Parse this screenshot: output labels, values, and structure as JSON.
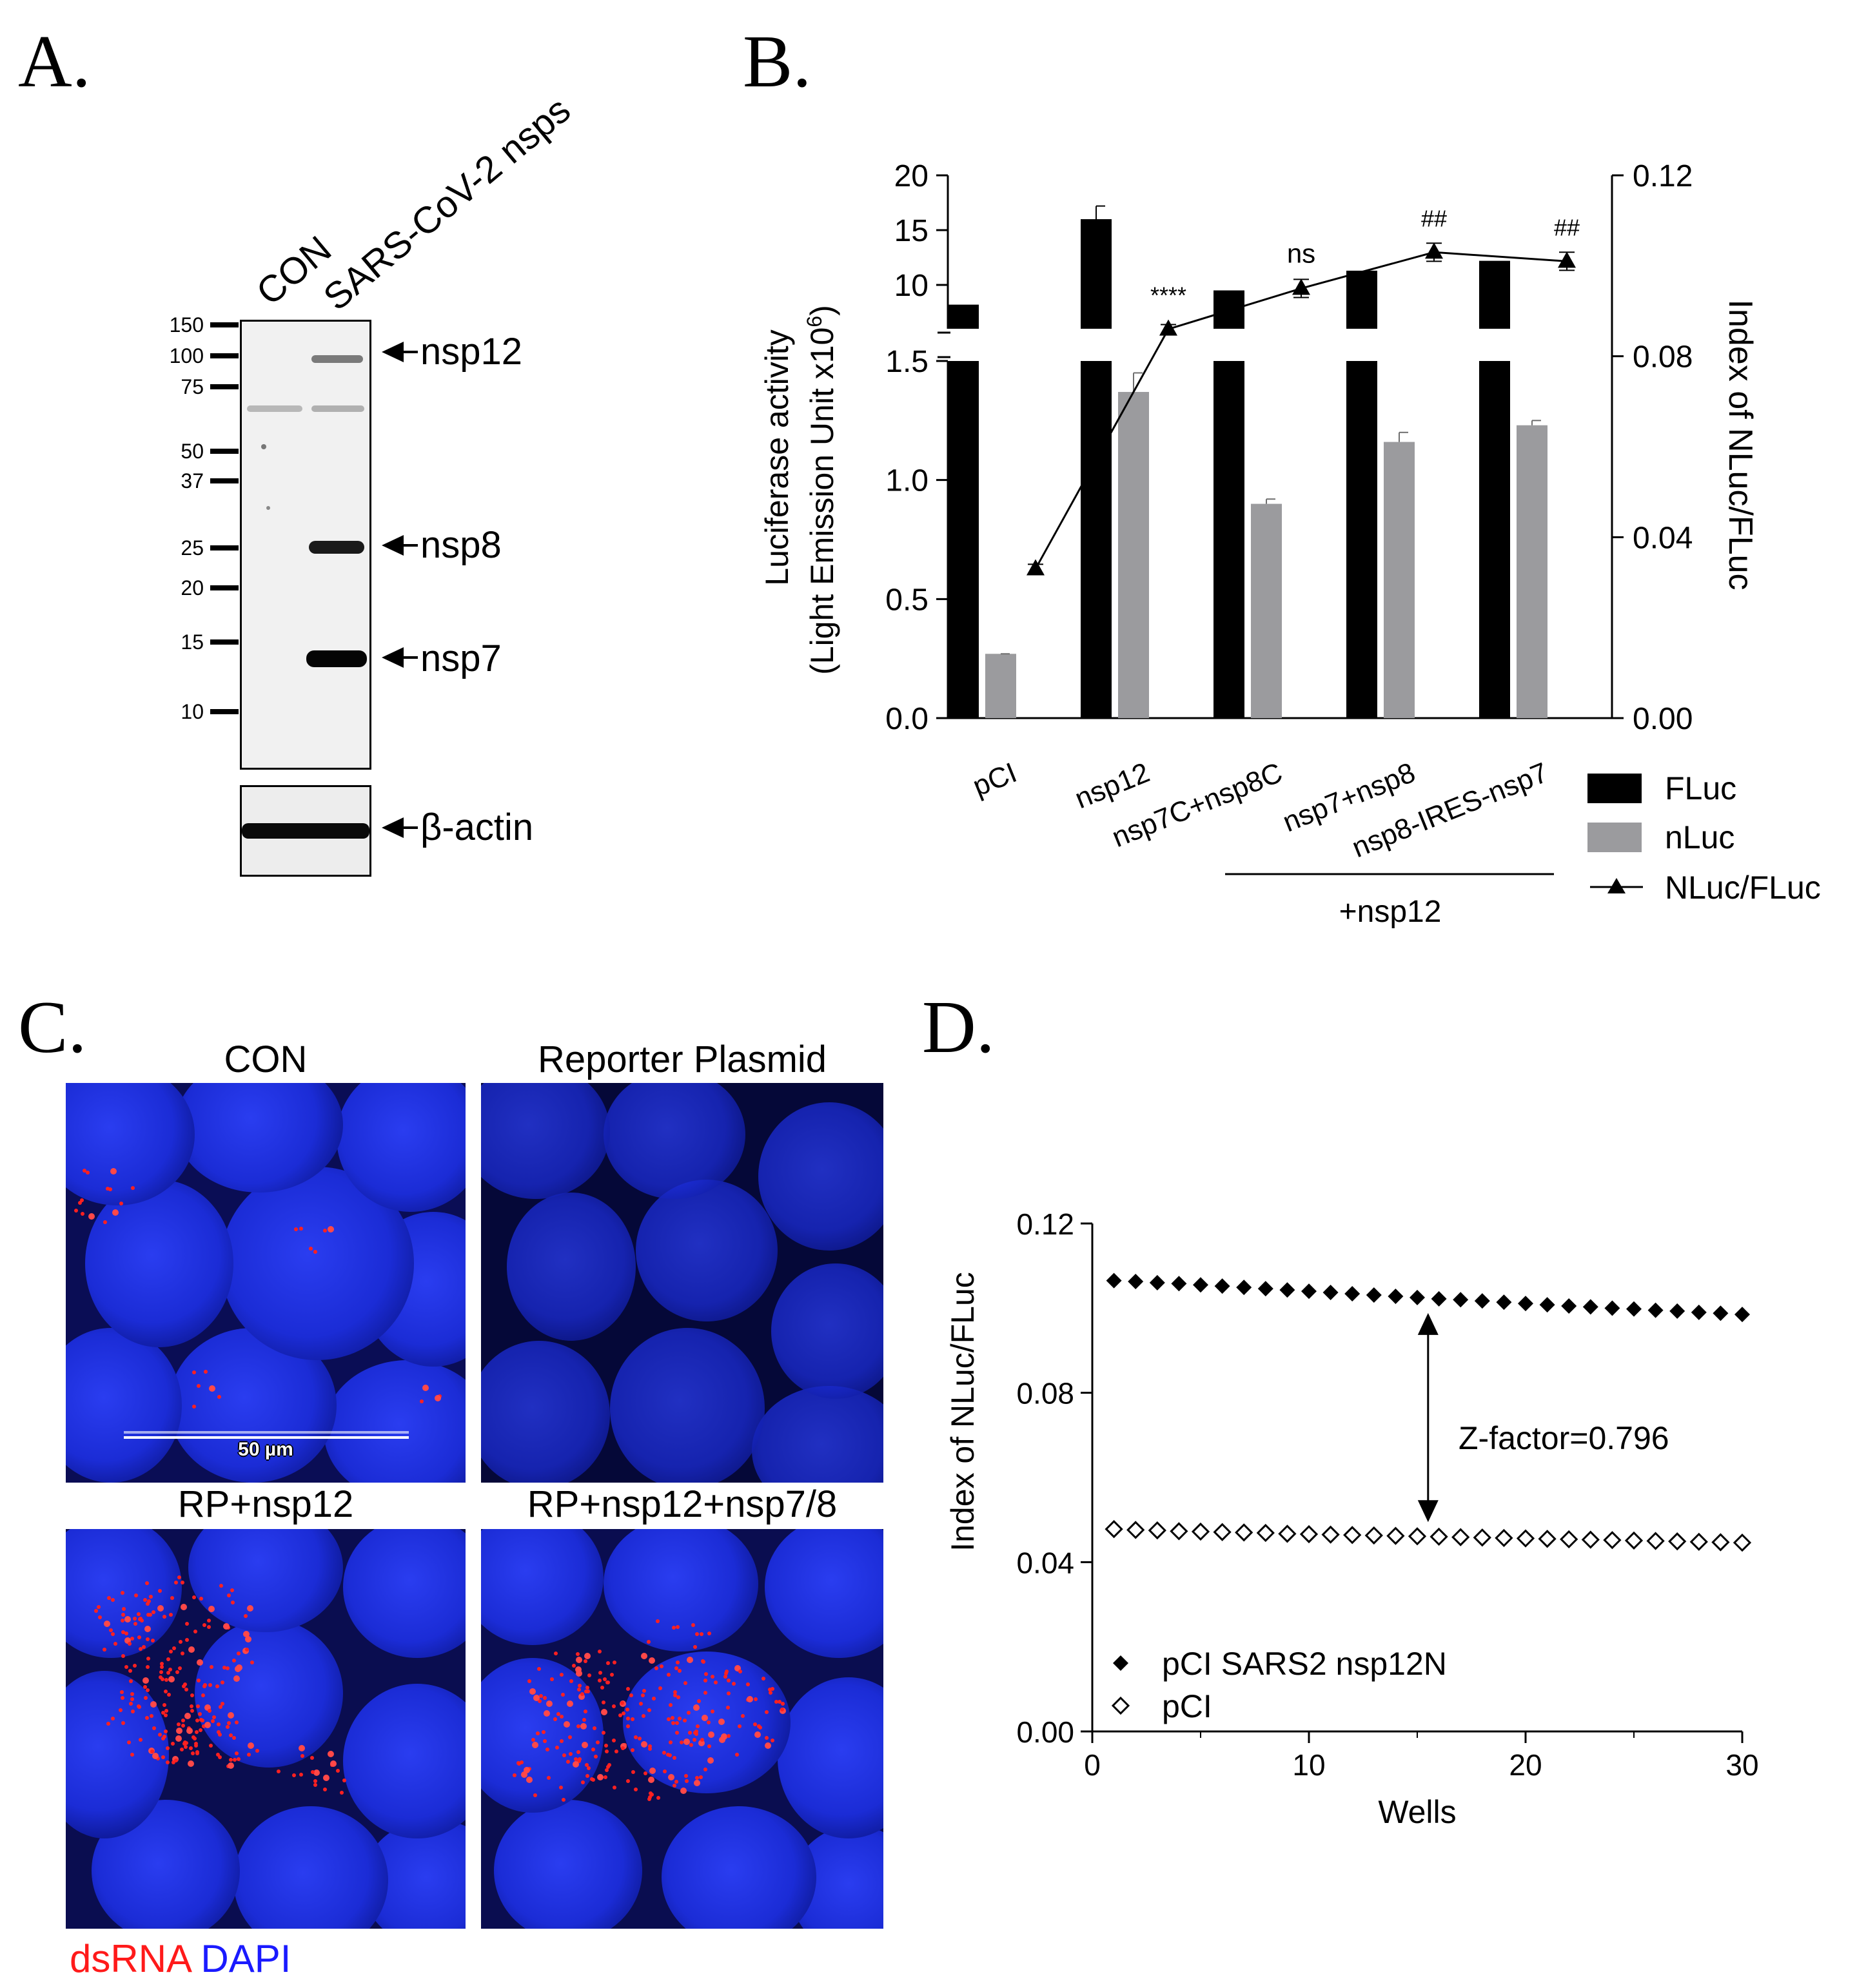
{
  "panels": {
    "a": {
      "letter": "A.",
      "lanes": [
        "CON",
        "SARS-CoV-2 nsps"
      ],
      "markers": [
        "150",
        "100",
        "75",
        "50",
        "37",
        "25",
        "20",
        "15",
        "10"
      ],
      "bands": [
        "nsp12",
        "nsp8",
        "nsp7"
      ],
      "loading_control": "β-actin"
    },
    "b": {
      "letter": "B."
    },
    "c": {
      "letter": "C.",
      "titles": [
        "CON",
        "Reporter Plasmid",
        "RP+nsp12",
        "RP+nsp12+nsp7/8"
      ],
      "scale_bar": "50 µm",
      "stain_red": "dsRNA",
      "stain_blue": "DAPI"
    },
    "d": {
      "letter": "D."
    }
  },
  "chart_data": [
    {
      "panel": "B",
      "type": "bar",
      "categories": [
        "pCI",
        "nsp12",
        "nsp7C+nsp8C",
        "nsp7+nsp8",
        "nsp8-IRES-nsp7"
      ],
      "group_label": "+nsp12",
      "ylabel_line1": "Luciferase activity",
      "ylabel_line2": "(Light Emission Unit x10",
      "ylabel_sup": "6",
      "ylabel_close": ")",
      "y2label": "Index of NLuc/FLuc",
      "yticks_lower": [
        "0.0",
        "0.5",
        "1.0",
        "1.5"
      ],
      "yticks_upper": [
        "10",
        "15",
        "20"
      ],
      "y2ticks": [
        "0.00",
        "0.04",
        "0.08",
        "0.12"
      ],
      "ylim_lower": [
        0,
        1.5
      ],
      "ylim_upper": [
        6,
        20
      ],
      "y2lim": [
        0,
        0.12
      ],
      "series": [
        {
          "name": "FLuc",
          "color": "#000000",
          "values": [
            8.2,
            16.0,
            9.5,
            11.3,
            12.2
          ]
        },
        {
          "name": "nLuc",
          "color": "#9b9b9e",
          "values": [
            0.27,
            1.37,
            0.9,
            1.16,
            1.23
          ],
          "errors": [
            0.0,
            0.08,
            0.02,
            0.04,
            0.02
          ]
        },
        {
          "name": "NLuc/FLuc",
          "color": "#000000",
          "values": [
            0.033,
            0.086,
            0.095,
            0.103,
            0.101
          ],
          "errors": [
            0.001,
            0.001,
            0.002,
            0.002,
            0.002
          ]
        }
      ],
      "annotations": [
        "",
        "****",
        "ns",
        "##",
        "##"
      ]
    },
    {
      "panel": "D",
      "type": "scatter",
      "xlabel": "Wells",
      "ylabel": "Index of NLuc/FLuc",
      "xticks": [
        "0",
        "10",
        "20",
        "30"
      ],
      "yticks": [
        "0.00",
        "0.04",
        "0.08",
        "0.12"
      ],
      "xlim": [
        0,
        30
      ],
      "ylim": [
        0,
        0.12
      ],
      "series": [
        {
          "name": "pCI SARS2 nsp12N",
          "marker": "filled-diamond",
          "x": [
            1,
            2,
            3,
            4,
            5,
            6,
            7,
            8,
            9,
            10,
            11,
            12,
            13,
            14,
            15,
            16,
            17,
            18,
            19,
            20,
            21,
            22,
            23,
            24,
            25,
            26,
            27,
            28,
            29,
            30
          ],
          "y": [
            0.1065,
            0.1063,
            0.106,
            0.1058,
            0.1055,
            0.1052,
            0.1049,
            0.1046,
            0.1043,
            0.104,
            0.1037,
            0.1034,
            0.1031,
            0.1028,
            0.1025,
            0.1022,
            0.102,
            0.1017,
            0.1014,
            0.1011,
            0.1008,
            0.1005,
            0.1003,
            0.1,
            0.0998,
            0.0995,
            0.0993,
            0.099,
            0.0988,
            0.0985
          ]
        },
        {
          "name": "pCI",
          "marker": "open-diamond",
          "x": [
            1,
            2,
            3,
            4,
            5,
            6,
            7,
            8,
            9,
            10,
            11,
            12,
            13,
            14,
            15,
            16,
            17,
            18,
            19,
            20,
            21,
            22,
            23,
            24,
            25,
            26,
            27,
            28,
            29,
            30
          ],
          "y": [
            0.0478,
            0.0476,
            0.0475,
            0.0473,
            0.0472,
            0.0471,
            0.047,
            0.0469,
            0.0467,
            0.0466,
            0.0465,
            0.0464,
            0.0463,
            0.0462,
            0.0461,
            0.046,
            0.0459,
            0.0458,
            0.0457,
            0.0456,
            0.0455,
            0.0454,
            0.0453,
            0.0452,
            0.0451,
            0.045,
            0.0449,
            0.0448,
            0.0447,
            0.0446
          ]
        }
      ],
      "annotation": "Z-factor=0.796",
      "arrow_x": 15.5
    }
  ]
}
